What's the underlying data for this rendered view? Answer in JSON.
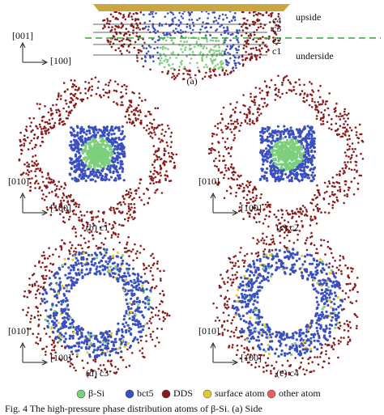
{
  "figure_a": {
    "label": "(a)",
    "upside": "upside",
    "underside": "underside",
    "cuts": [
      "c4",
      "c3",
      "c2",
      "c1"
    ],
    "axis_vertical": "[001]",
    "axis_horizontal": "[100]"
  },
  "panels": [
    {
      "label": "(b) c1",
      "axis_vertical": "[010]",
      "axis_horizontal": "[100]"
    },
    {
      "label": "(c) c2",
      "axis_vertical": "[010]",
      "axis_horizontal": "[100]"
    },
    {
      "label": "(d) c3",
      "axis_vertical": "[010]",
      "axis_horizontal": "[100]"
    },
    {
      "label": "(e) c4",
      "axis_vertical": "[010]",
      "axis_horizontal": "[100]"
    }
  ],
  "legend": [
    "β-Si",
    "bct5",
    "DDS",
    "surface atom",
    "other atom"
  ],
  "caption": "Fig. 4   The high-pressure phase distribution atoms of β-Si. (a) Side"
}
